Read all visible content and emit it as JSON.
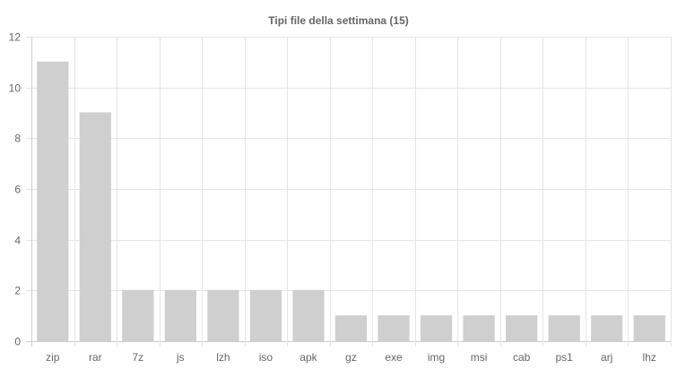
{
  "chart_data": {
    "type": "bar",
    "title": "Tipi file della settimana (15)",
    "xlabel": "",
    "ylabel": "",
    "categories": [
      "zip",
      "rar",
      "7z",
      "js",
      "lzh",
      "iso",
      "apk",
      "gz",
      "exe",
      "img",
      "msi",
      "cab",
      "ps1",
      "arj",
      "lhz"
    ],
    "values": [
      11,
      9,
      2,
      2,
      2,
      2,
      2,
      1,
      1,
      1,
      1,
      1,
      1,
      1,
      1
    ],
    "ylim": [
      0,
      12
    ],
    "yticks": [
      0,
      2,
      4,
      6,
      8,
      10,
      12
    ],
    "grid": true,
    "legend": "none",
    "colors": {
      "bar": "#cfcfd0",
      "grid": "#e5e5e5",
      "text": "#666666"
    }
  }
}
